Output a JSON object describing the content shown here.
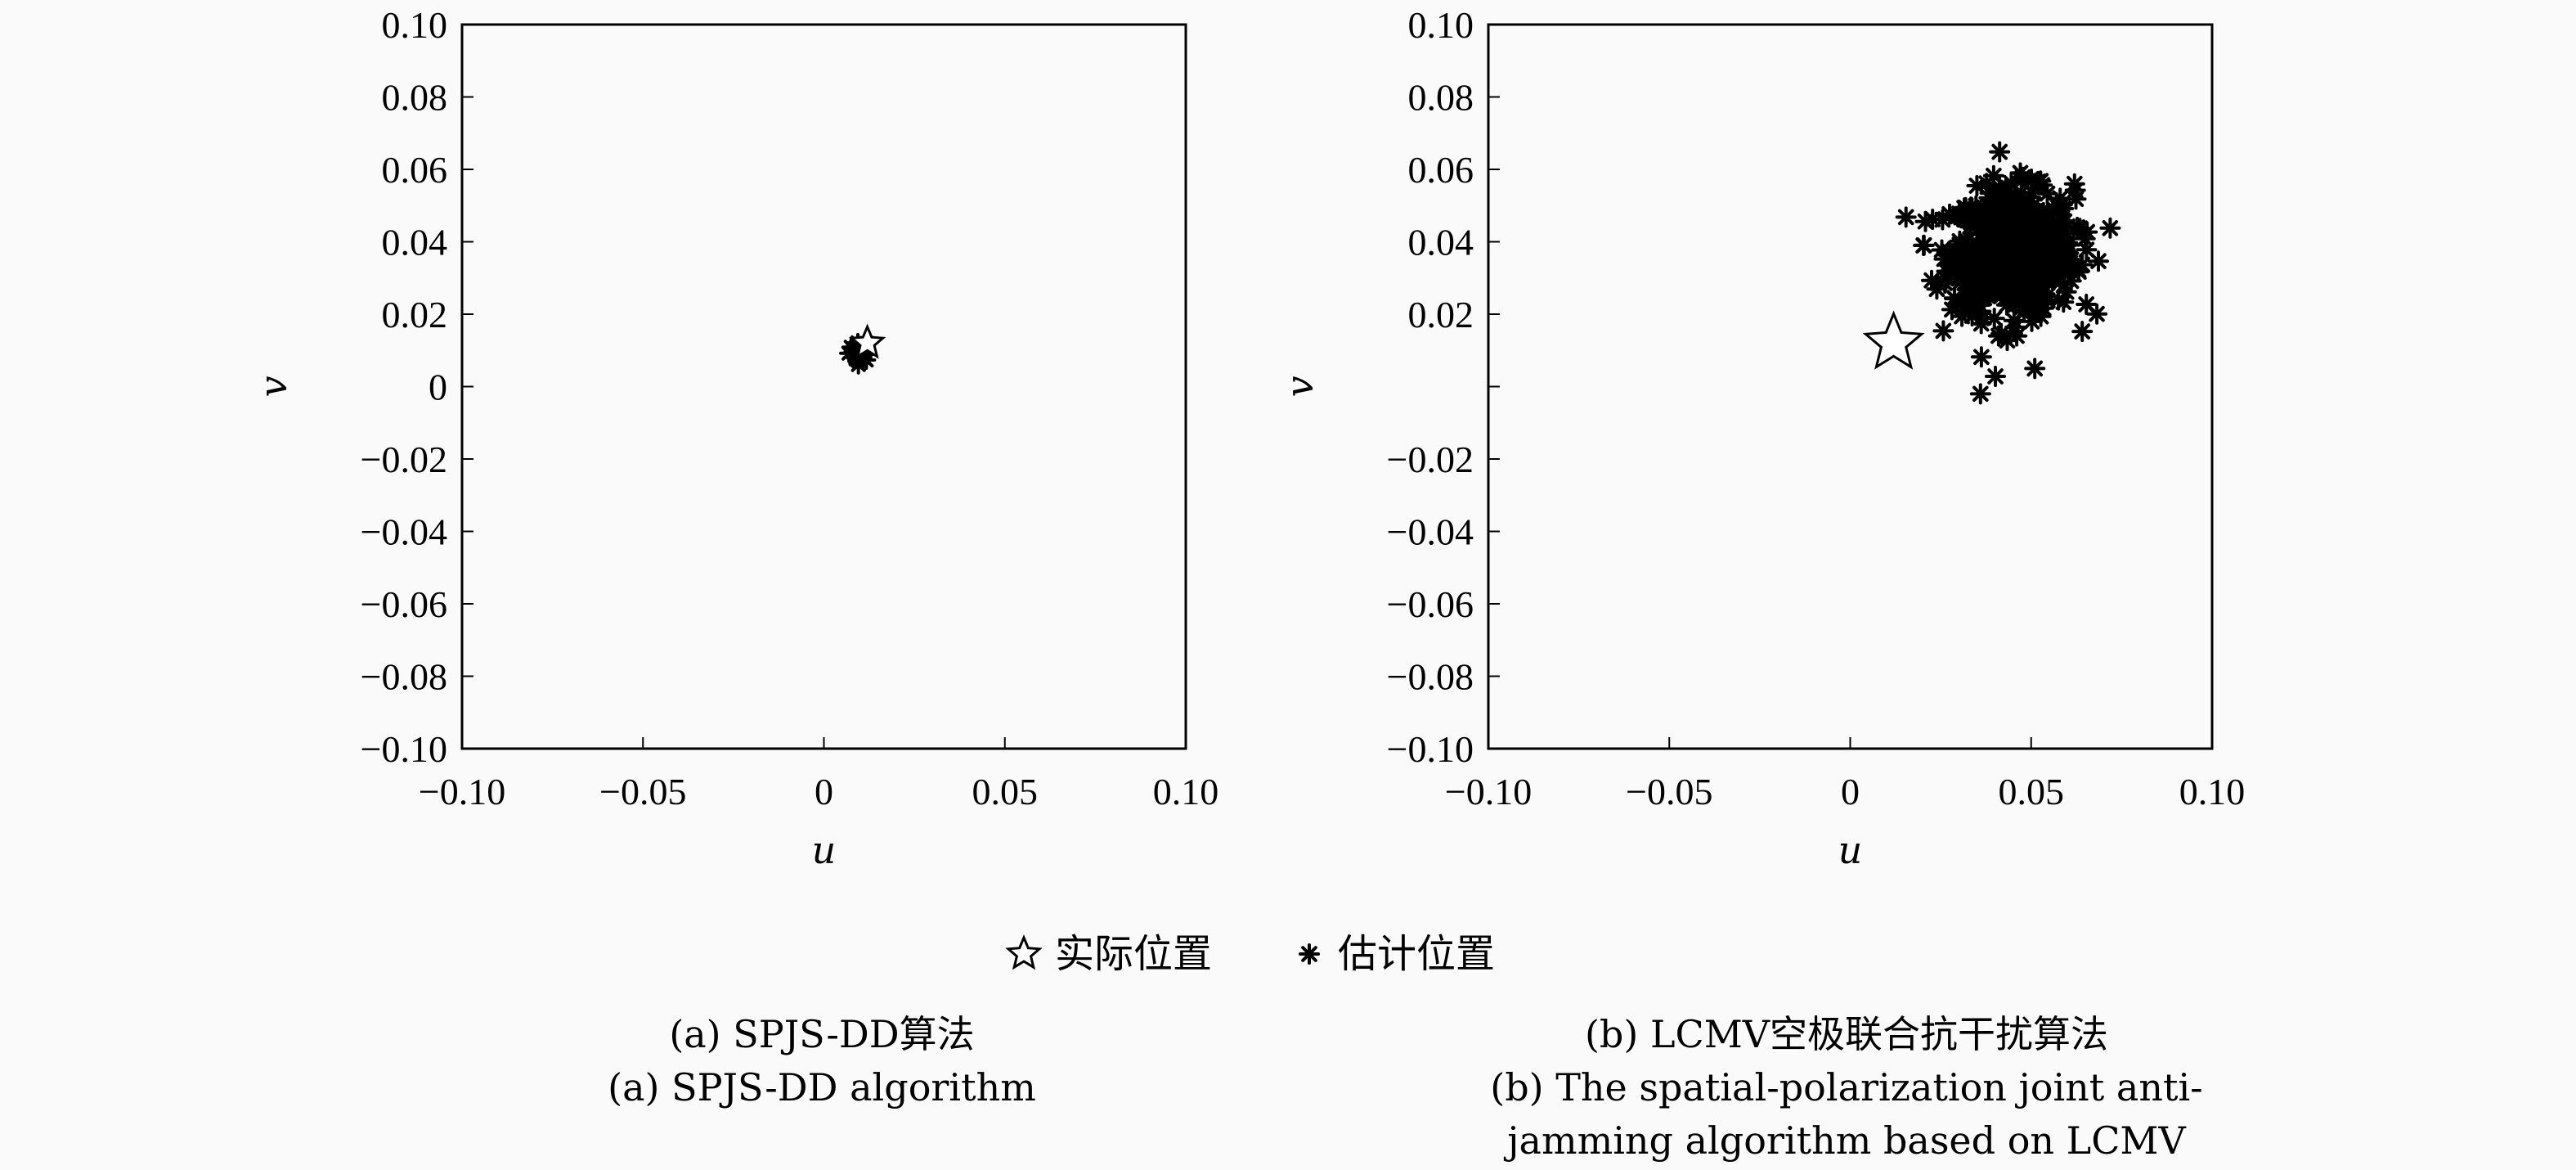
{
  "chart_data": [
    {
      "type": "scatter",
      "title": "",
      "xlabel": "u",
      "ylabel": "v",
      "xlim": [
        -0.1,
        0.1
      ],
      "ylim": [
        -0.1,
        0.1
      ],
      "xticks": [
        -0.1,
        -0.05,
        0,
        0.05,
        0.1
      ],
      "xtick_labels": [
        "−0.10",
        "−0.05",
        "0",
        "0.05",
        "0.10"
      ],
      "yticks": [
        0.1,
        0.08,
        0.06,
        0.04,
        0.02,
        0,
        -0.02,
        -0.04,
        -0.06,
        -0.08,
        -0.1
      ],
      "ytick_labels": [
        "0.10",
        "0.08",
        "0.06",
        "0.04",
        "0.02",
        "0",
        "−0.02",
        "−0.04",
        "−0.06",
        "−0.08",
        "−0.10"
      ],
      "grid": false,
      "actual_position": {
        "u": 0.012,
        "v": 0.012
      },
      "estimated_cluster": {
        "center_u": 0.01,
        "center_v": 0.01,
        "spread": 0.0015
      },
      "estimated_outliers": [],
      "caption_zh": "(a) SPJS-DD算法",
      "caption_en": [
        "(a) SPJS-DD algorithm"
      ]
    },
    {
      "type": "scatter",
      "title": "",
      "xlabel": "u",
      "ylabel": "v",
      "xlim": [
        -0.1,
        0.1
      ],
      "ylim": [
        -0.1,
        0.1
      ],
      "xticks": [
        -0.1,
        -0.05,
        0,
        0.05,
        0.1
      ],
      "xtick_labels": [
        "−0.10",
        "−0.05",
        "0",
        "0.05",
        "0.10"
      ],
      "yticks": [
        0.1,
        0.08,
        0.06,
        0.04,
        0.02,
        -0.02,
        -0.04,
        -0.06,
        -0.08,
        -0.1
      ],
      "ytick_labels": [
        "0.10",
        "0.08",
        "0.06",
        "0.04",
        "0.02",
        "−0.02",
        "−0.04",
        "−0.06",
        "−0.08",
        "−0.10"
      ],
      "grid": false,
      "actual_position": {
        "u": 0.012,
        "v": 0.012
      },
      "estimated_cluster": {
        "center_u": 0.045,
        "center_v": 0.037,
        "spread": 0.0085
      },
      "estimated_outliers": [
        {
          "u": 0.036,
          "v": -0.002
        },
        {
          "u": 0.051,
          "v": 0.005
        },
        {
          "u": 0.041,
          "v": 0.014
        },
        {
          "u": 0.046,
          "v": 0.014
        },
        {
          "u": 0.028,
          "v": 0.035
        },
        {
          "u": 0.06,
          "v": 0.037
        },
        {
          "u": 0.062,
          "v": 0.056
        },
        {
          "u": 0.047,
          "v": 0.059
        },
        {
          "u": 0.058,
          "v": 0.052
        },
        {
          "u": 0.033,
          "v": 0.027
        }
      ],
      "caption_zh": "(b) LCMV空极联合抗干扰算法",
      "caption_en": [
        "(b) The spatial-polarization joint anti-",
        "jamming algorithm based on LCMV"
      ]
    }
  ],
  "legend": {
    "placement": "bottom-center",
    "items": [
      {
        "label": "实际位置",
        "marker": "star-icon"
      },
      {
        "label": "估计位置",
        "marker": "asterisk-icon"
      }
    ]
  }
}
